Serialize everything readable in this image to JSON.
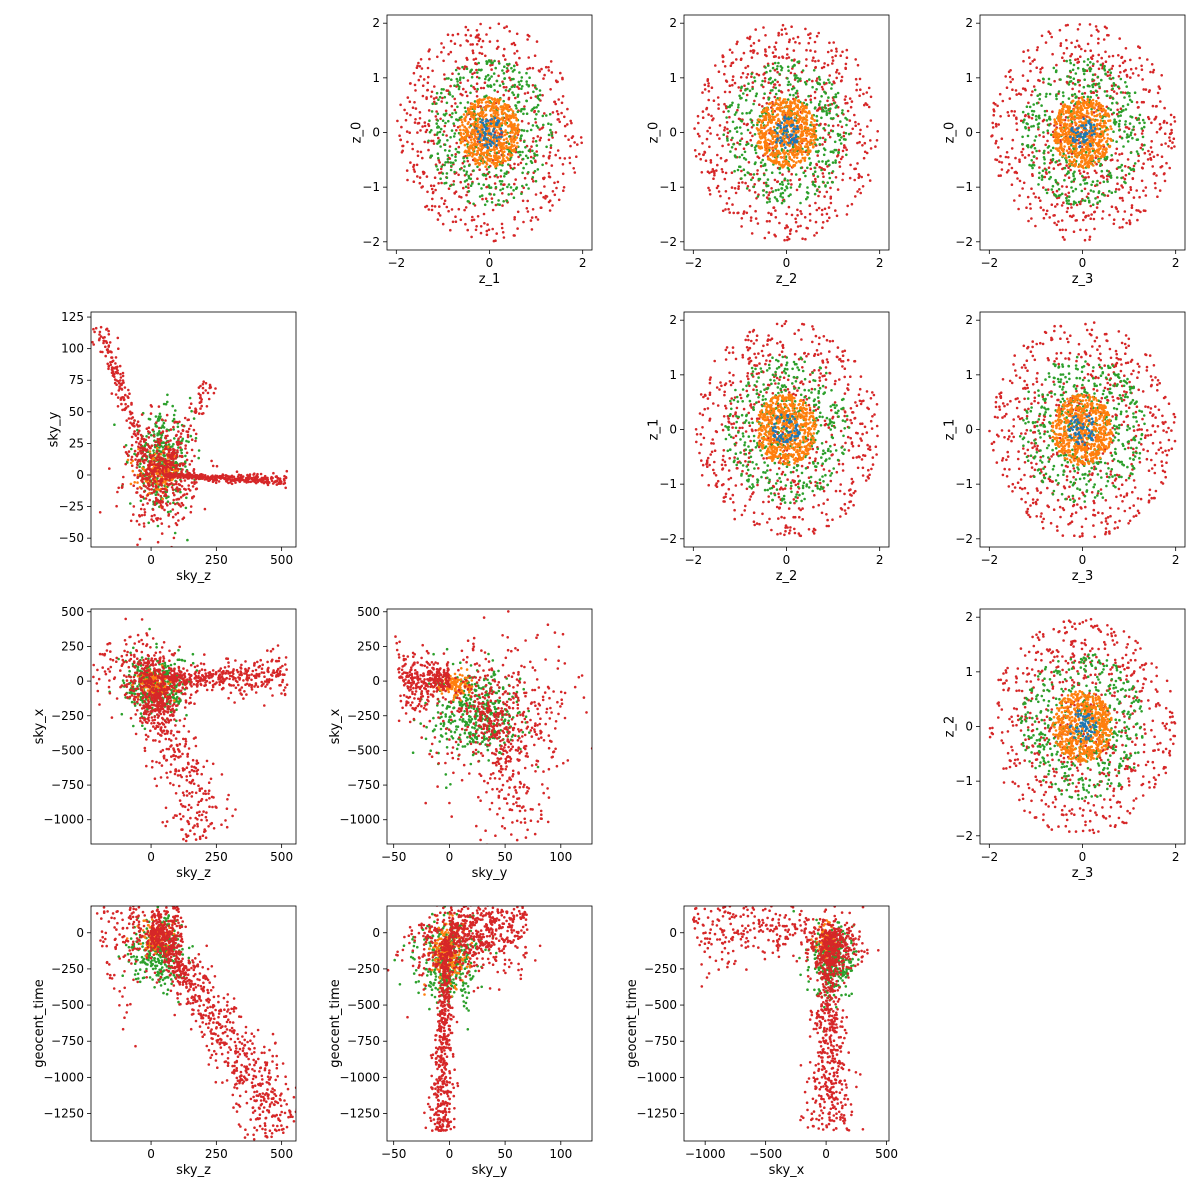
{
  "colors": {
    "blue": "#1f77b4",
    "orange": "#ff7f0e",
    "green": "#2ca02c",
    "red": "#d62728"
  },
  "chart_data": [
    {
      "type": "scatter",
      "row": 0,
      "col": 1,
      "xlabel": "z_1",
      "ylabel": "z_0",
      "xlim": [
        -2.2,
        2.2
      ],
      "ylim": [
        -2.15,
        2.15
      ],
      "xticks": [
        -2,
        0,
        2
      ],
      "yticks": [
        -2,
        -1,
        0,
        1,
        2
      ],
      "series": [
        {
          "color": "red",
          "shape": "disc",
          "r": 2.0,
          "n": 650
        },
        {
          "color": "green",
          "shape": "disc",
          "r": 1.35,
          "n": 450
        },
        {
          "color": "orange",
          "shape": "disc",
          "r": 0.65,
          "n": 600
        },
        {
          "color": "blue",
          "shape": "disc",
          "r": 0.3,
          "n": 60
        }
      ]
    },
    {
      "type": "scatter",
      "row": 0,
      "col": 2,
      "xlabel": "z_2",
      "ylabel": "z_0",
      "xlim": [
        -2.2,
        2.2
      ],
      "ylim": [
        -2.15,
        2.15
      ],
      "xticks": [
        -2,
        0,
        2
      ],
      "yticks": [
        -2,
        -1,
        0,
        1,
        2
      ],
      "series": [
        {
          "color": "red",
          "shape": "disc",
          "r": 2.0,
          "n": 650
        },
        {
          "color": "green",
          "shape": "disc",
          "r": 1.35,
          "n": 450
        },
        {
          "color": "orange",
          "shape": "disc",
          "r": 0.65,
          "n": 600
        },
        {
          "color": "blue",
          "shape": "disc",
          "r": 0.3,
          "n": 60
        }
      ]
    },
    {
      "type": "scatter",
      "row": 0,
      "col": 3,
      "xlabel": "z_3",
      "ylabel": "z_0",
      "xlim": [
        -2.2,
        2.2
      ],
      "ylim": [
        -2.15,
        2.15
      ],
      "xticks": [
        -2,
        0,
        2
      ],
      "yticks": [
        -2,
        -1,
        0,
        1,
        2
      ],
      "series": [
        {
          "color": "red",
          "shape": "disc",
          "r": 2.0,
          "n": 650
        },
        {
          "color": "green",
          "shape": "disc",
          "r": 1.35,
          "n": 450
        },
        {
          "color": "orange",
          "shape": "disc",
          "r": 0.65,
          "n": 600
        },
        {
          "color": "blue",
          "shape": "disc",
          "r": 0.3,
          "n": 60
        }
      ]
    },
    {
      "type": "scatter",
      "row": 1,
      "col": 0,
      "xlabel": "sky_z",
      "ylabel": "sky_y",
      "xlim": [
        -230,
        555
      ],
      "ylim": [
        -57,
        129
      ],
      "xticks": [
        0,
        250,
        500
      ],
      "yticks": [
        -50,
        -25,
        0,
        25,
        50,
        75,
        100,
        125
      ],
      "series": [
        {
          "color": "green",
          "shape": "blob",
          "cx": 40,
          "cy": 10,
          "sx": 60,
          "sy": 18,
          "n": 350
        },
        {
          "color": "orange",
          "shape": "blob",
          "cx": 30,
          "cy": 2,
          "sx": 40,
          "sy": 8,
          "n": 150
        },
        {
          "color": "red",
          "shape": "segment",
          "x0": 50,
          "y0": 0,
          "x1": 520,
          "y1": -5,
          "w": 4,
          "n": 350
        },
        {
          "color": "red",
          "shape": "segment",
          "x0": 0,
          "y0": 0,
          "x1": -200,
          "y1": 118,
          "w": 8,
          "n": 180
        },
        {
          "color": "red",
          "shape": "segment",
          "x0": 60,
          "y0": 5,
          "x1": 220,
          "y1": 72,
          "w": 8,
          "n": 90
        },
        {
          "color": "red",
          "shape": "blob",
          "cx": 40,
          "cy": 0,
          "sx": 65,
          "sy": 20,
          "n": 450
        }
      ]
    },
    {
      "type": "scatter",
      "row": 1,
      "col": 2,
      "xlabel": "z_2",
      "ylabel": "z_1",
      "xlim": [
        -2.2,
        2.2
      ],
      "ylim": [
        -2.15,
        2.15
      ],
      "xticks": [
        -2,
        0,
        2
      ],
      "yticks": [
        -2,
        -1,
        0,
        1,
        2
      ],
      "series": [
        {
          "color": "red",
          "shape": "disc",
          "r": 2.0,
          "n": 650
        },
        {
          "color": "green",
          "shape": "disc",
          "r": 1.35,
          "n": 450
        },
        {
          "color": "orange",
          "shape": "disc",
          "r": 0.65,
          "n": 600
        },
        {
          "color": "blue",
          "shape": "disc",
          "r": 0.3,
          "n": 60
        }
      ]
    },
    {
      "type": "scatter",
      "row": 1,
      "col": 3,
      "xlabel": "z_3",
      "ylabel": "z_1",
      "xlim": [
        -2.2,
        2.2
      ],
      "ylim": [
        -2.15,
        2.15
      ],
      "xticks": [
        -2,
        0,
        2
      ],
      "yticks": [
        -2,
        -1,
        0,
        1,
        2
      ],
      "series": [
        {
          "color": "red",
          "shape": "disc",
          "r": 2.0,
          "n": 650
        },
        {
          "color": "green",
          "shape": "disc",
          "r": 1.35,
          "n": 450
        },
        {
          "color": "orange",
          "shape": "disc",
          "r": 0.65,
          "n": 600
        },
        {
          "color": "blue",
          "shape": "disc",
          "r": 0.3,
          "n": 60
        }
      ]
    },
    {
      "type": "scatter",
      "row": 2,
      "col": 0,
      "xlabel": "sky_z",
      "ylabel": "sky_x",
      "xlim": [
        -230,
        555
      ],
      "ylim": [
        -1175,
        520
      ],
      "xticks": [
        0,
        250,
        500
      ],
      "yticks": [
        -1000,
        -750,
        -500,
        -250,
        0,
        250,
        500
      ],
      "series": [
        {
          "color": "green",
          "shape": "blob",
          "cx": 20,
          "cy": -40,
          "sx": 60,
          "sy": 110,
          "n": 350
        },
        {
          "color": "orange",
          "shape": "blob",
          "cx": 20,
          "cy": -20,
          "sx": 35,
          "sy": 50,
          "n": 120
        },
        {
          "color": "red",
          "shape": "segment",
          "x0": 60,
          "y0": 10,
          "x1": 520,
          "y1": 45,
          "w": 15,
          "n": 350
        },
        {
          "color": "red",
          "shape": "segment",
          "x0": 0,
          "y0": -60,
          "x1": 230,
          "y1": -1130,
          "w": 25,
          "n": 300
        },
        {
          "color": "red",
          "shape": "segment",
          "x0": 0,
          "y0": 20,
          "x1": -180,
          "y1": 240,
          "w": 40,
          "n": 120
        },
        {
          "color": "red",
          "shape": "blob",
          "cx": 30,
          "cy": -60,
          "sx": 55,
          "sy": 130,
          "n": 400
        }
      ]
    },
    {
      "type": "scatter",
      "row": 2,
      "col": 1,
      "xlabel": "sky_y",
      "ylabel": "sky_x",
      "xlim": [
        -56,
        128
      ],
      "ylim": [
        -1175,
        520
      ],
      "xticks": [
        -50,
        0,
        50,
        100
      ],
      "yticks": [
        -1000,
        -750,
        -500,
        -250,
        0,
        250,
        500
      ],
      "series": [
        {
          "color": "green",
          "shape": "blob",
          "cx": 25,
          "cy": -220,
          "sx": 20,
          "sy": 170,
          "n": 400
        },
        {
          "color": "orange",
          "shape": "blob",
          "cx": 5,
          "cy": -30,
          "sx": 8,
          "sy": 40,
          "n": 120
        },
        {
          "color": "red",
          "shape": "segment",
          "x0": 0,
          "y0": 20,
          "x1": -45,
          "y1": -10,
          "w": 25,
          "n": 300
        },
        {
          "color": "red",
          "shape": "segment",
          "x0": 30,
          "y0": -150,
          "x1": 72,
          "y1": -1120,
          "w": 30,
          "n": 180
        },
        {
          "color": "red",
          "shape": "blob",
          "cx": 40,
          "cy": -250,
          "sx": 30,
          "sy": 230,
          "n": 400
        },
        {
          "color": "red",
          "shape": "segment",
          "x0": 10,
          "y0": 80,
          "x1": 120,
          "y1": 180,
          "w": 60,
          "n": 40
        }
      ]
    },
    {
      "type": "scatter",
      "row": 2,
      "col": 3,
      "xlabel": "z_3",
      "ylabel": "z_2",
      "xlim": [
        -2.2,
        2.2
      ],
      "ylim": [
        -2.15,
        2.15
      ],
      "xticks": [
        -2,
        0,
        2
      ],
      "yticks": [
        -2,
        -1,
        0,
        1,
        2
      ],
      "series": [
        {
          "color": "red",
          "shape": "disc",
          "r": 2.0,
          "n": 650
        },
        {
          "color": "green",
          "shape": "disc",
          "r": 1.35,
          "n": 450
        },
        {
          "color": "orange",
          "shape": "disc",
          "r": 0.65,
          "n": 600
        },
        {
          "color": "blue",
          "shape": "disc",
          "r": 0.3,
          "n": 60
        }
      ]
    },
    {
      "type": "scatter",
      "row": 3,
      "col": 0,
      "xlabel": "sky_z",
      "ylabel": "geocent_time",
      "xlim": [
        -230,
        555
      ],
      "ylim": [
        -1440,
        185
      ],
      "xticks": [
        0,
        250,
        500
      ],
      "yticks": [
        -1250,
        -1000,
        -750,
        -500,
        -250,
        0
      ],
      "series": [
        {
          "color": "green",
          "shape": "blob",
          "cx": 30,
          "cy": -120,
          "sx": 50,
          "sy": 120,
          "n": 300
        },
        {
          "color": "orange",
          "shape": "blob",
          "cx": 20,
          "cy": -40,
          "sx": 30,
          "sy": 50,
          "n": 100
        },
        {
          "color": "red",
          "shape": "segment",
          "x0": 20,
          "y0": 40,
          "x1": 520,
          "y1": -1370,
          "w": 25,
          "n": 700
        },
        {
          "color": "red",
          "shape": "segment",
          "x0": 0,
          "y0": 40,
          "x1": 120,
          "y1": 30,
          "w": 50,
          "n": 300
        },
        {
          "color": "red",
          "shape": "segment",
          "x0": 0,
          "y0": 0,
          "x1": -200,
          "y1": -100,
          "w": 60,
          "n": 150
        }
      ]
    },
    {
      "type": "scatter",
      "row": 3,
      "col": 1,
      "xlabel": "sky_y",
      "ylabel": "geocent_time",
      "xlim": [
        -56,
        128
      ],
      "ylim": [
        -1440,
        185
      ],
      "xticks": [
        -50,
        0,
        50,
        100
      ],
      "yticks": [
        -1250,
        -1000,
        -750,
        -500,
        -250,
        0
      ],
      "series": [
        {
          "color": "green",
          "shape": "blob",
          "cx": 0,
          "cy": -200,
          "sx": 14,
          "sy": 150,
          "n": 350
        },
        {
          "color": "orange",
          "shape": "blob",
          "cx": -2,
          "cy": -150,
          "sx": 8,
          "sy": 100,
          "n": 200
        },
        {
          "color": "red",
          "shape": "segment",
          "x0": -2,
          "y0": -50,
          "x1": -8,
          "y1": -1370,
          "w": 10,
          "n": 500
        },
        {
          "color": "red",
          "shape": "segment",
          "x0": 0,
          "y0": 30,
          "x1": 70,
          "y1": 20,
          "w": 35,
          "n": 350
        },
        {
          "color": "red",
          "shape": "blob",
          "cx": 0,
          "cy": -100,
          "sx": 25,
          "sy": 140,
          "n": 300
        }
      ]
    },
    {
      "type": "scatter",
      "row": 3,
      "col": 2,
      "xlabel": "sky_x",
      "ylabel": "geocent_time",
      "xlim": [
        -1175,
        520
      ],
      "ylim": [
        -1440,
        185
      ],
      "xticks": [
        -1000,
        -500,
        0,
        500
      ],
      "yticks": [
        -1250,
        -1000,
        -750,
        -500,
        -250,
        0
      ],
      "series": [
        {
          "color": "green",
          "shape": "blob",
          "cx": 40,
          "cy": -200,
          "sx": 90,
          "sy": 130,
          "n": 300
        },
        {
          "color": "orange",
          "shape": "blob",
          "cx": 0,
          "cy": -60,
          "sx": 40,
          "sy": 60,
          "n": 80
        },
        {
          "color": "red",
          "shape": "segment",
          "x0": 20,
          "y0": 0,
          "x1": 40,
          "y1": -1370,
          "w": 18,
          "n": 550
        },
        {
          "color": "red",
          "shape": "segment",
          "x0": -100,
          "y0": 30,
          "x1": -1100,
          "y1": 35,
          "w": 35,
          "n": 250
        },
        {
          "color": "red",
          "shape": "blob",
          "cx": 60,
          "cy": -80,
          "sx": 110,
          "sy": 100,
          "n": 300
        }
      ]
    }
  ]
}
